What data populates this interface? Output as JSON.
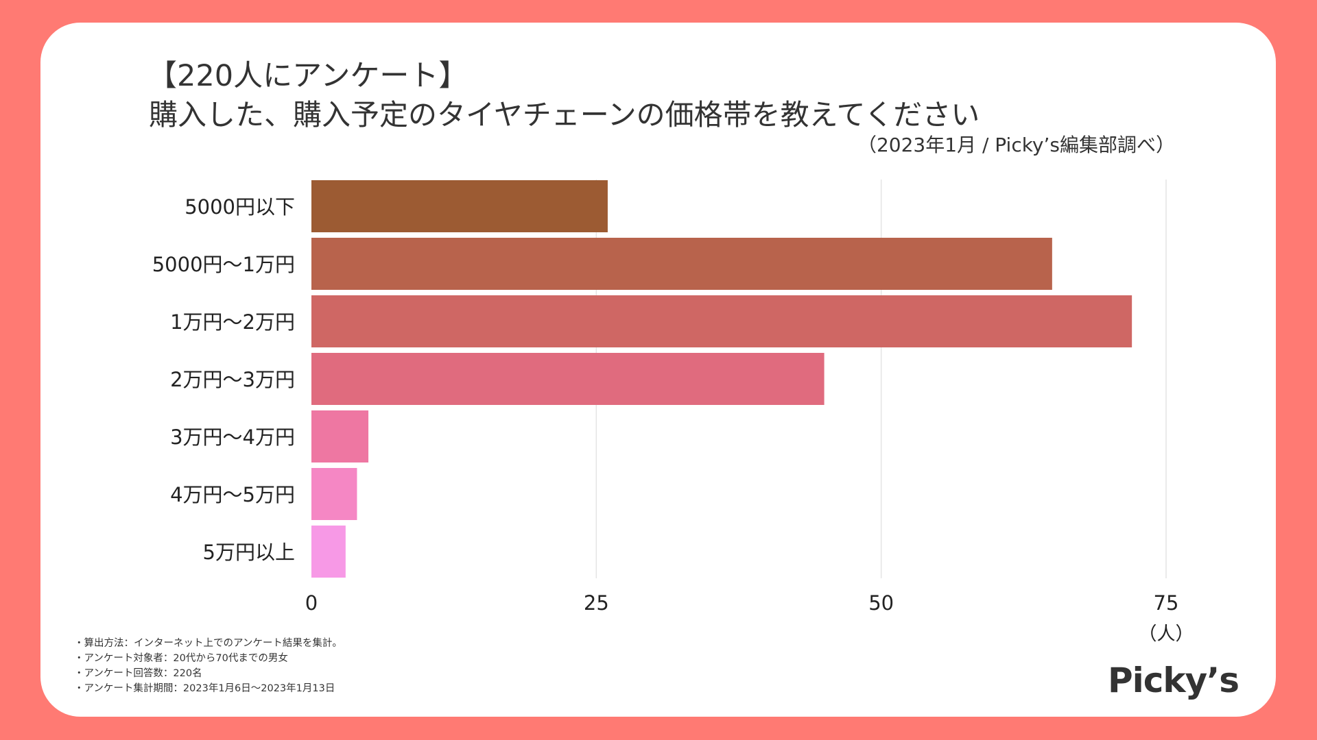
{
  "header": {
    "title_line1": "【220人にアンケート】",
    "title_line2": "購入した、購入予定のタイヤチェーンの価格帯を教えてください",
    "source": "（2023年1月 / Picky’s編集部調べ）"
  },
  "chart_data": {
    "type": "bar",
    "orientation": "horizontal",
    "title": "購入した、購入予定のタイヤチェーンの価格帯を教えてください",
    "categories": [
      "5000円以下",
      "5000円〜1万円",
      "1万円〜2万円",
      "2万円〜3万円",
      "3万円〜4万円",
      "4万円〜5万円",
      "5万円以上"
    ],
    "values": [
      26,
      65,
      72,
      45,
      5,
      4,
      3
    ],
    "colors": [
      "#9C5B33",
      "#B8634C",
      "#CF6764",
      "#E06B7E",
      "#EE77A2",
      "#F587C4",
      "#F799E6"
    ],
    "xlim": [
      0,
      75
    ],
    "xticks": [
      0,
      25,
      50,
      75
    ],
    "xticks_label": [
      "0",
      "25",
      "50",
      "75"
    ],
    "xlabel": "（人）",
    "ylabel": "",
    "grid": true,
    "legend": "none"
  },
  "notes": [
    "・算出方法：インターネット上でのアンケート結果を集計。",
    "・アンケート対象者：20代から70代までの男女",
    "・アンケート回答数：220名",
    "・アンケート集計期間：2023年1月6日〜2023年1月13日"
  ],
  "brand": {
    "logo_text": "Picky’s",
    "accent_color": "#FF7A73"
  }
}
